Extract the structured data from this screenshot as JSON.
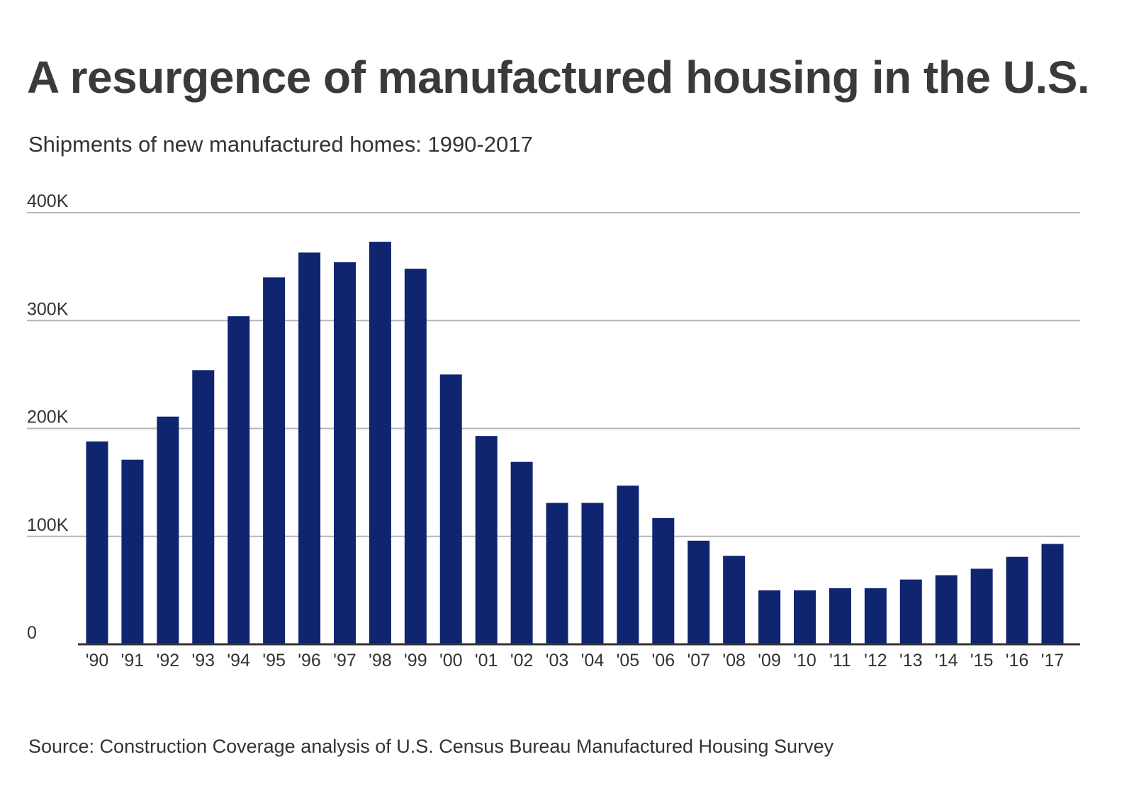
{
  "chart_data": {
    "type": "bar",
    "title": "A resurgence of manufactured housing in the U.S.",
    "subtitle": "Shipments of new manufactured homes: 1990-2017",
    "source": "Source: Construction Coverage analysis of U.S. Census Bureau Manufactured Housing Survey",
    "xlabel": "",
    "ylabel": "",
    "ylim": [
      0,
      400000
    ],
    "grid": true,
    "color": "#0f2570",
    "yticks": [
      {
        "value": 0,
        "label": "0"
      },
      {
        "value": 100000,
        "label": "100K"
      },
      {
        "value": 200000,
        "label": "200K"
      },
      {
        "value": 300000,
        "label": "300K"
      },
      {
        "value": 400000,
        "label": "400K"
      }
    ],
    "categories": [
      "'90",
      "'91",
      "'92",
      "'93",
      "'94",
      "'95",
      "'96",
      "'97",
      "'98",
      "'99",
      "'00",
      "'01",
      "'02",
      "'03",
      "'04",
      "'05",
      "'06",
      "'07",
      "'08",
      "'09",
      "'10",
      "'11",
      "'12",
      "'13",
      "'14",
      "'15",
      "'16",
      "'17"
    ],
    "values": [
      188000,
      171000,
      211000,
      254000,
      304000,
      340000,
      363000,
      354000,
      373000,
      348000,
      250000,
      193000,
      169000,
      131000,
      131000,
      147000,
      117000,
      96000,
      82000,
      50000,
      50000,
      52000,
      52000,
      60000,
      64000,
      70000,
      81000,
      93000
    ]
  }
}
